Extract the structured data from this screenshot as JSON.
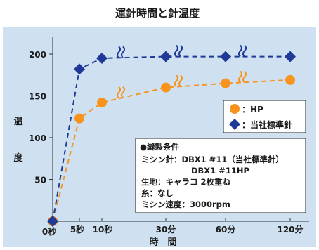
{
  "chart_data": {
    "type": "line",
    "title": "運針時間と針温度",
    "xlabel": "時　間",
    "ylabel": [
      "温",
      "度"
    ],
    "categories": [
      "0秒",
      "5秒",
      "10秒",
      "30分",
      "60分",
      "120分"
    ],
    "ylim": [
      0,
      225
    ],
    "yticks": [
      50,
      100,
      150,
      200
    ],
    "axis_breaks_after": [
      "10秒",
      "30分",
      "60分"
    ],
    "series": [
      {
        "name": "HP",
        "color": "#f7941d",
        "marker": "circle",
        "style": "dashed",
        "values": [
          0,
          123,
          142,
          160,
          165,
          169
        ]
      },
      {
        "name": "当社標準針",
        "color": "#1f3a96",
        "marker": "diamond",
        "style": "dashed",
        "values": [
          0,
          182,
          195,
          197,
          197,
          197
        ]
      }
    ],
    "legend": {
      "placement": "right",
      "entries": [
        {
          "marker": "circle",
          "color": "#f7941d",
          "label": "：HP"
        },
        {
          "marker": "diamond",
          "color": "#1f3a96",
          "label": "：当社標準針"
        }
      ]
    },
    "annotation": {
      "heading": "●縫製条件",
      "lines": [
        "ミシン針：DBX1 #11（当社標準針）",
        "DBX1 #11HP",
        "生地：キャラコ 2枚重ね",
        "糸：なし",
        "ミシン速度：3000rpm"
      ]
    },
    "colors": {
      "plot_background": "#cfe0f1",
      "orange": "#f7941d",
      "navy": "#1f3a96"
    },
    "grid": false
  }
}
